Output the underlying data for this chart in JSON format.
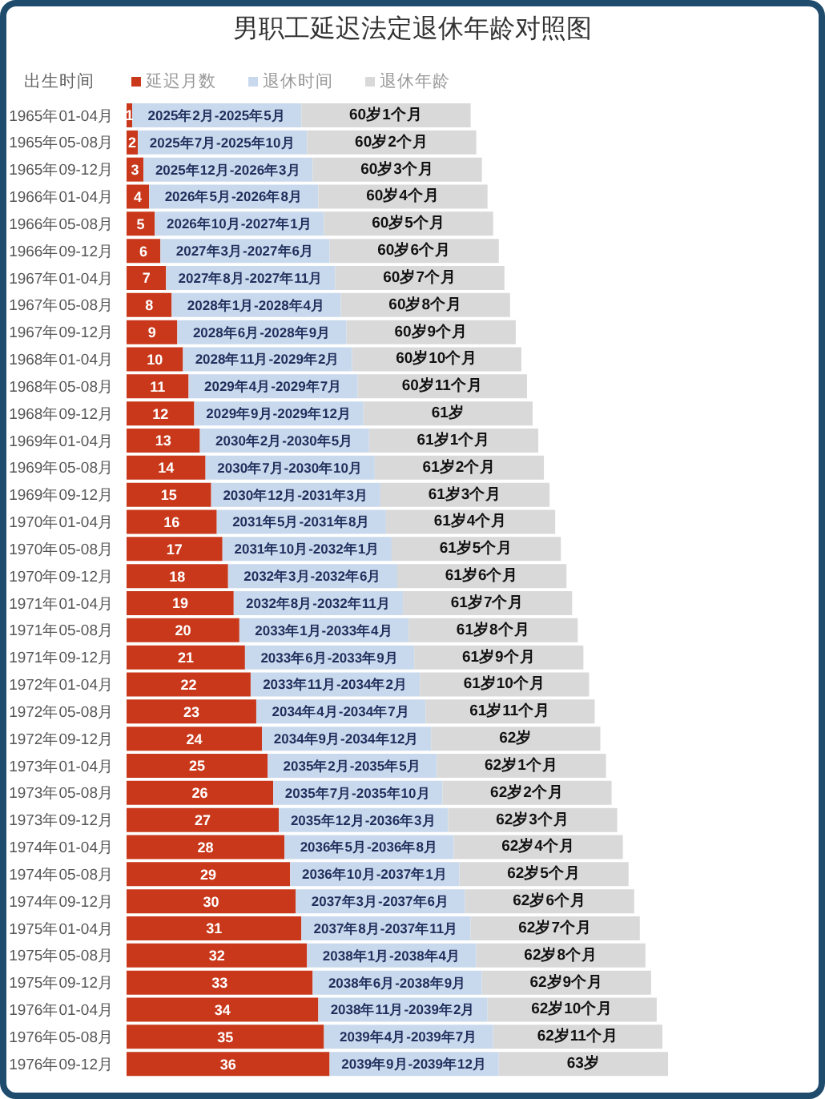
{
  "chart_data": {
    "type": "bar",
    "orientation": "horizontal",
    "stacked": true,
    "title": "男职工延迟法定退休年龄对照图",
    "ylabel": "出生时间",
    "legend": "top left",
    "tick_labels": "y",
    "categories": [
      "1965年01-04月",
      "1965年05-08月",
      "1965年09-12月",
      "1966年01-04月",
      "1966年05-08月",
      "1966年09-12月",
      "1967年01-04月",
      "1967年05-08月",
      "1967年09-12月",
      "1968年01-04月",
      "1968年05-08月",
      "1968年09-12月",
      "1969年01-04月",
      "1969年05-08月",
      "1969年09-12月",
      "1970年01-04月",
      "1970年05-08月",
      "1970年09-12月",
      "1971年01-04月",
      "1971年05-08月",
      "1971年09-12月",
      "1972年01-04月",
      "1972年05-08月",
      "1972年09-12月",
      "1973年01-04月",
      "1973年05-08月",
      "1973年09-12月",
      "1974年01-04月",
      "1974年05-08月",
      "1974年09-12月",
      "1975年01-04月",
      "1975年05-08月",
      "1975年09-12月",
      "1976年01-04月",
      "1976年05-08月",
      "1976年09-12月"
    ],
    "series": [
      {
        "name": "延迟月数",
        "color": "#c9381a",
        "data_labels": true,
        "values": [
          1,
          2,
          3,
          4,
          5,
          6,
          7,
          8,
          9,
          10,
          11,
          12,
          13,
          14,
          15,
          16,
          17,
          18,
          19,
          20,
          21,
          22,
          23,
          24,
          25,
          26,
          27,
          28,
          29,
          30,
          31,
          32,
          33,
          34,
          35,
          36
        ]
      },
      {
        "name": "退休时间",
        "color": "#c9d9ed",
        "values": [
          30,
          30,
          30,
          30,
          30,
          30,
          30,
          30,
          30,
          30,
          30,
          30,
          30,
          30,
          30,
          30,
          30,
          30,
          30,
          30,
          30,
          30,
          30,
          30,
          30,
          30,
          30,
          30,
          30,
          30,
          30,
          30,
          30,
          30,
          30,
          30
        ]
      },
      {
        "name": "退休年龄",
        "color": "#d9d9d9",
        "values": [
          30,
          30,
          30,
          30,
          30,
          30,
          30,
          30,
          30,
          30,
          30,
          30,
          30,
          30,
          30,
          30,
          30,
          30,
          30,
          30,
          30,
          30,
          30,
          30,
          30,
          30,
          30,
          30,
          30,
          30,
          30,
          30,
          30,
          30,
          30,
          30
        ]
      }
    ],
    "annotations": [
      {
        "text": "2025年2月-2025年5月",
        "x": 16,
        "y": "1965年01-04月"
      },
      {
        "text": "60岁1个月",
        "x": 46,
        "y": "1965年01-04月"
      },
      {
        "text": "2025年7月-2025年10月",
        "x": 17,
        "y": "1965年05-08月"
      },
      {
        "text": "60岁2个月",
        "x": 47,
        "y": "1965年05-08月"
      },
      {
        "text": "2025年12月-2026年3月",
        "x": 18,
        "y": "1965年09-12月"
      },
      {
        "text": "60岁3个月",
        "x": 48,
        "y": "1965年09-12月"
      },
      {
        "text": "2026年5月-2026年8月",
        "x": 19,
        "y": "1966年01-04月"
      },
      {
        "text": "60岁4个月",
        "x": 49,
        "y": "1966年01-04月"
      },
      {
        "text": "2026年10月-2027年1月",
        "x": 20,
        "y": "1966年05-08月"
      },
      {
        "text": "60岁5个月",
        "x": 50,
        "y": "1966年05-08月"
      },
      {
        "text": "2027年3月-2027年6月",
        "x": 21,
        "y": "1966年09-12月"
      },
      {
        "text": "60岁6个月",
        "x": 51,
        "y": "1966年09-12月"
      },
      {
        "text": "2027年8月-2027年11月",
        "x": 22,
        "y": "1967年01-04月"
      },
      {
        "text": "60岁7个月",
        "x": 52,
        "y": "1967年01-04月"
      },
      {
        "text": "2028年1月-2028年4月",
        "x": 23,
        "y": "1967年05-08月"
      },
      {
        "text": "60岁8个月",
        "x": 53,
        "y": "1967年05-08月"
      },
      {
        "text": "2028年6月-2028年9月",
        "x": 24,
        "y": "1967年09-12月"
      },
      {
        "text": "60岁9个月",
        "x": 54,
        "y": "1967年09-12月"
      },
      {
        "text": "2028年11月-2029年2月",
        "x": 25,
        "y": "1968年01-04月"
      },
      {
        "text": "60岁10个月",
        "x": 55,
        "y": "1968年01-04月"
      },
      {
        "text": "2029年4月-2029年7月",
        "x": 26,
        "y": "1968年05-08月"
      },
      {
        "text": "60岁11个月",
        "x": 56,
        "y": "1968年05-08月"
      },
      {
        "text": "2029年9月-2029年12月",
        "x": 27,
        "y": "1968年09-12月"
      },
      {
        "text": "61岁",
        "x": 57,
        "y": "1968年09-12月"
      },
      {
        "text": "2030年2月-2030年5月",
        "x": 28,
        "y": "1969年01-04月"
      },
      {
        "text": "61岁1个月",
        "x": 58,
        "y": "1969年01-04月"
      },
      {
        "text": "2030年7月-2030年10月",
        "x": 29,
        "y": "1969年05-08月"
      },
      {
        "text": "61岁2个月",
        "x": 59,
        "y": "1969年05-08月"
      },
      {
        "text": "2030年12月-2031年3月",
        "x": 30,
        "y": "1969年09-12月"
      },
      {
        "text": "61岁3个月",
        "x": 60,
        "y": "1969年09-12月"
      },
      {
        "text": "2031年5月-2031年8月",
        "x": 31,
        "y": "1970年01-04月"
      },
      {
        "text": "61岁4个月",
        "x": 61,
        "y": "1970年01-04月"
      },
      {
        "text": "2031年10月-2032年1月",
        "x": 32,
        "y": "1970年05-08月"
      },
      {
        "text": "61岁5个月",
        "x": 62,
        "y": "1970年05-08月"
      },
      {
        "text": "2032年3月-2032年6月",
        "x": 33,
        "y": "1970年09-12月"
      },
      {
        "text": "61岁6个月",
        "x": 63,
        "y": "1970年09-12月"
      },
      {
        "text": "2032年8月-2032年11月",
        "x": 34,
        "y": "1971年01-04月"
      },
      {
        "text": "61岁7个月",
        "x": 64,
        "y": "1971年01-04月"
      },
      {
        "text": "2033年1月-2033年4月",
        "x": 35,
        "y": "1971年05-08月"
      },
      {
        "text": "61岁8个月",
        "x": 65,
        "y": "1971年05-08月"
      },
      {
        "text": "2033年6月-2033年9月",
        "x": 36,
        "y": "1971年09-12月"
      },
      {
        "text": "61岁9个月",
        "x": 66,
        "y": "1971年09-12月"
      },
      {
        "text": "2033年11月-2034年2月",
        "x": 37,
        "y": "1972年01-04月"
      },
      {
        "text": "61岁10个月",
        "x": 67,
        "y": "1972年01-04月"
      },
      {
        "text": "2034年4月-2034年7月",
        "x": 38,
        "y": "1972年05-08月"
      },
      {
        "text": "61岁11个月",
        "x": 68,
        "y": "1972年05-08月"
      },
      {
        "text": "2034年9月-2034年12月",
        "x": 39,
        "y": "1972年09-12月"
      },
      {
        "text": "62岁",
        "x": 69,
        "y": "1972年09-12月"
      },
      {
        "text": "2035年2月-2035年5月",
        "x": 40,
        "y": "1973年01-04月"
      },
      {
        "text": "62岁1个月",
        "x": 70,
        "y": "1973年01-04月"
      },
      {
        "text": "2035年7月-2035年10月",
        "x": 41,
        "y": "1973年05-08月"
      },
      {
        "text": "62岁2个月",
        "x": 71,
        "y": "1973年05-08月"
      },
      {
        "text": "2035年12月-2036年3月",
        "x": 42,
        "y": "1973年09-12月"
      },
      {
        "text": "62岁3个月",
        "x": 72,
        "y": "1973年09-12月"
      },
      {
        "text": "2036年5月-2036年8月",
        "x": 43,
        "y": "1974年01-04月"
      },
      {
        "text": "62岁4个月",
        "x": 73,
        "y": "1974年01-04月"
      },
      {
        "text": "2036年10月-2037年1月",
        "x": 44,
        "y": "1974年05-08月"
      },
      {
        "text": "62岁5个月",
        "x": 74,
        "y": "1974年05-08月"
      },
      {
        "text": "2037年3月-2037年6月",
        "x": 45,
        "y": "1974年09-12月"
      },
      {
        "text": "62岁6个月",
        "x": 75,
        "y": "1974年09-12月"
      },
      {
        "text": "2037年8月-2037年11月",
        "x": 46,
        "y": "1975年01-04月"
      },
      {
        "text": "62岁7个月",
        "x": 76,
        "y": "1975年01-04月"
      },
      {
        "text": "2038年1月-2038年4月",
        "x": 47,
        "y": "1975年05-08月"
      },
      {
        "text": "62岁8个月",
        "x": 77,
        "y": "1975年05-08月"
      },
      {
        "text": "2038年6月-2038年9月",
        "x": 48,
        "y": "1975年09-12月"
      },
      {
        "text": "62岁9个月",
        "x": 78,
        "y": "1975年09-12月"
      },
      {
        "text": "2038年11月-2039年2月",
        "x": 49,
        "y": "1976年01-04月"
      },
      {
        "text": "62岁10个月",
        "x": 79,
        "y": "1976年01-04月"
      },
      {
        "text": "2039年4月-2039年7月",
        "x": 50,
        "y": "1976年05-08月"
      },
      {
        "text": "62岁11个月",
        "x": 80,
        "y": "1976年05-08月"
      },
      {
        "text": "2039年9月-2039年12月",
        "x": 51,
        "y": "1976年09-12月"
      },
      {
        "text": "63岁",
        "x": 81,
        "y": "1976年09-12月"
      }
    ]
  }
}
